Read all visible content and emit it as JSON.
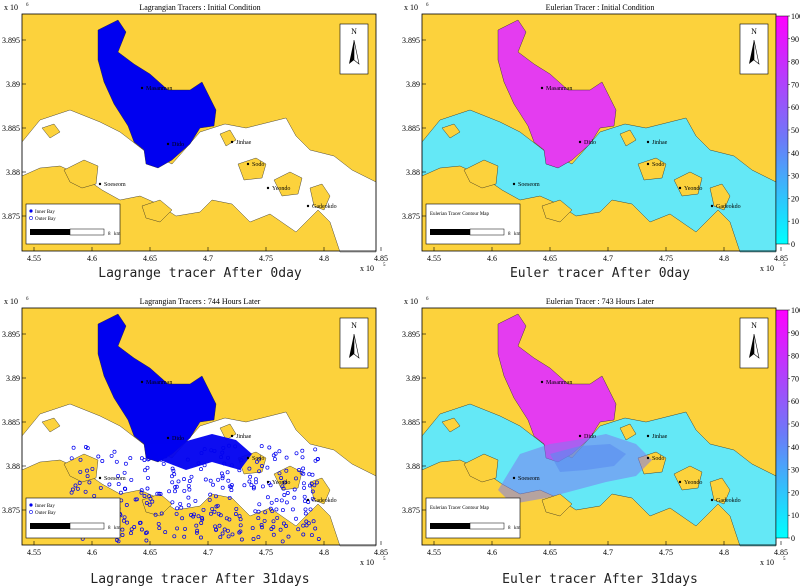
{
  "colors": {
    "land": "#FCD23C",
    "inner_bay_blue": "#0000F0",
    "water_white": "#FFFFFF",
    "euler_magenta": "#E43CF0",
    "euler_cyan": "#64E8F6",
    "colorbar_top": "#FF00FF",
    "colorbar_bottom": "#00FFFF"
  },
  "shared": {
    "x_exponent": "x 10",
    "x_exponent_power": "5",
    "y_exponent": "x 10",
    "y_exponent_power": "6",
    "x_ticks": [
      "4.55",
      "4.6",
      "4.65",
      "4.7",
      "4.75",
      "4.8",
      "4.85"
    ],
    "y_ticks": [
      "3.875",
      "3.88",
      "3.885",
      "3.89",
      "3.895"
    ],
    "colorbar_ticks": [
      "0",
      "10",
      "20",
      "30",
      "40",
      "50",
      "60",
      "70",
      "80",
      "90",
      "100"
    ],
    "north": "N",
    "place_names": {
      "masanman": "Masanman",
      "jinhae": "Jinhae",
      "dido": "Dido",
      "sodo": "Sodo",
      "soeseom": "Soeseom",
      "yeondo": "Yeondo",
      "gadeokdo": "Gadeokdo"
    },
    "legend": {
      "inner": "Inner Bay",
      "outer": "Outer Bay",
      "scale": "8",
      "unit": "km"
    },
    "euler_legend_title": "Eulerian Tracer Contour Map"
  },
  "chart_data": [
    {
      "type": "map",
      "title": "Lagrangian Tracers : Initial Condition",
      "caption": "Lagrange tracer After 0day",
      "mode": "lagrange",
      "time_hours": 0
    },
    {
      "type": "map",
      "title": "Eulerian Tracer : Initial Condition",
      "caption": "Euler tracer After 0day",
      "mode": "euler",
      "time_hours": 0,
      "colorbar": [
        0,
        100
      ]
    },
    {
      "type": "map",
      "title": "Lagrangian Tracers : 744 Hours Later",
      "caption": "Lagrange tracer After 31days",
      "mode": "lagrange",
      "time_hours": 744
    },
    {
      "type": "map",
      "title": "Eulerian Tracer : 743 Hours Later",
      "caption": "Euler tracer After 31days",
      "mode": "euler",
      "time_hours": 743,
      "colorbar": [
        0,
        100
      ]
    }
  ]
}
